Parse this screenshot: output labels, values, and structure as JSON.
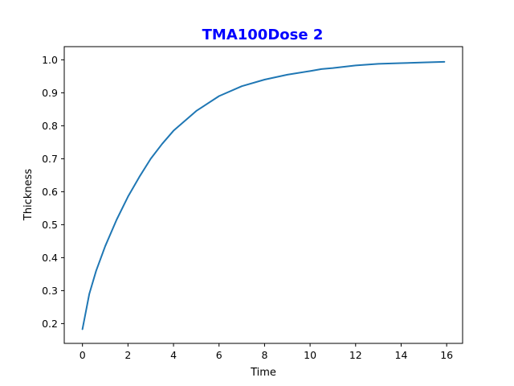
{
  "chart_data": {
    "type": "line",
    "title": "TMA100Dose 2",
    "title_color": "#0000ff",
    "xlabel": "Time",
    "ylabel": "Thickness",
    "xlim": [
      -0.8,
      16.7
    ],
    "ylim": [
      0.14,
      1.04
    ],
    "x_ticks": [
      0,
      2,
      4,
      6,
      8,
      10,
      12,
      14,
      16
    ],
    "y_ticks": [
      0.2,
      0.3,
      0.4,
      0.5,
      0.6,
      0.7,
      0.8,
      0.9,
      1.0
    ],
    "x_tick_labels": [
      "0",
      "2",
      "4",
      "6",
      "8",
      "10",
      "12",
      "14",
      "16"
    ],
    "y_tick_labels": [
      "0.2",
      "0.3",
      "0.4",
      "0.5",
      "0.6",
      "0.7",
      "0.8",
      "0.9",
      "1.0"
    ],
    "grid": false,
    "series": [
      {
        "color": "#1f77b4",
        "x": [
          0,
          0.3,
          0.6,
          1,
          1.5,
          2,
          2.5,
          3,
          3.5,
          4,
          5,
          6,
          7,
          8,
          9,
          10,
          10.5,
          11,
          12,
          13,
          14,
          15,
          15.9
        ],
        "y": [
          0.183,
          0.29,
          0.36,
          0.435,
          0.515,
          0.585,
          0.645,
          0.7,
          0.745,
          0.785,
          0.845,
          0.89,
          0.92,
          0.94,
          0.955,
          0.966,
          0.972,
          0.975,
          0.983,
          0.988,
          0.99,
          0.992,
          0.994
        ]
      }
    ]
  }
}
